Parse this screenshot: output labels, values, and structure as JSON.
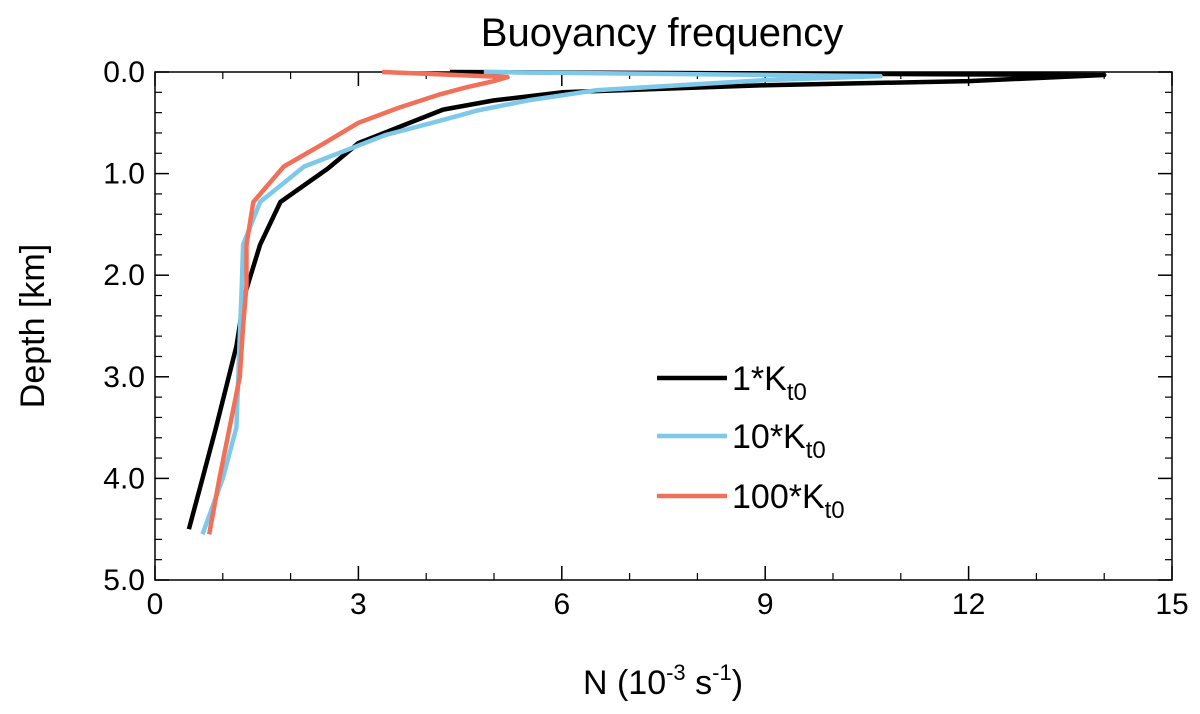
{
  "chart_data": {
    "type": "line",
    "title": "Buoyancy frequency",
    "xlabel": {
      "base": "N (10",
      "exp1": "-3",
      "mid": " s",
      "exp2": "-1",
      "end": ")"
    },
    "ylabel": "Depth [km]",
    "xlim": [
      0,
      15
    ],
    "ylim": [
      0,
      5
    ],
    "y_inverted": true,
    "x_ticks": [
      0,
      3,
      6,
      9,
      12,
      15
    ],
    "x_tick_labels": [
      "0",
      "3",
      "6",
      "9",
      "12",
      "15"
    ],
    "y_ticks": [
      0,
      1,
      2,
      3,
      4,
      5
    ],
    "y_tick_labels": [
      "0.0",
      "1.0",
      "2.0",
      "3.0",
      "4.0",
      "5.0"
    ],
    "x_minor_step": 1,
    "y_minor_step": 0.2,
    "grid": false,
    "legend_position": "lower-right",
    "series": [
      {
        "name": "1*Kt0",
        "legend_main": "1*K",
        "legend_sub": "t0",
        "color": "#000000",
        "x": [
          4.35,
          14.0,
          12.0,
          9.0,
          6.0,
          5.0,
          4.25,
          3.0,
          2.55,
          1.85,
          1.55,
          1.32,
          1.2,
          1.05,
          0.9,
          0.7,
          0.5
        ],
        "y": [
          0.0,
          0.03,
          0.09,
          0.13,
          0.2,
          0.28,
          0.37,
          0.7,
          0.95,
          1.28,
          1.7,
          2.2,
          2.7,
          3.1,
          3.5,
          4.0,
          4.5
        ]
      },
      {
        "name": "10*Kt0",
        "legend_main": "10*K",
        "legend_sub": "t0",
        "color": "#7ec8ea",
        "x": [
          4.85,
          10.7,
          9.0,
          6.5,
          5.5,
          4.75,
          4.2,
          3.4,
          2.9,
          2.2,
          1.55,
          1.3,
          1.28,
          1.25,
          1.2,
          1.0,
          0.7
        ],
        "y": [
          0.0,
          0.04,
          0.08,
          0.18,
          0.28,
          0.38,
          0.48,
          0.62,
          0.75,
          0.93,
          1.28,
          1.7,
          2.1,
          2.6,
          3.5,
          4.0,
          4.55
        ]
      },
      {
        "name": "100*Kt0",
        "legend_main": "100*K",
        "legend_sub": "t0",
        "color": "#f0705a",
        "x": [
          3.35,
          5.2,
          5.0,
          4.6,
          4.2,
          3.6,
          3.0,
          2.5,
          1.9,
          1.45,
          1.35,
          1.35,
          1.3,
          1.25,
          1.1,
          0.95,
          0.8
        ],
        "y": [
          0.0,
          0.05,
          0.09,
          0.15,
          0.22,
          0.35,
          0.5,
          0.7,
          0.93,
          1.28,
          1.7,
          2.1,
          2.5,
          3.0,
          3.5,
          4.0,
          4.55
        ]
      }
    ]
  }
}
